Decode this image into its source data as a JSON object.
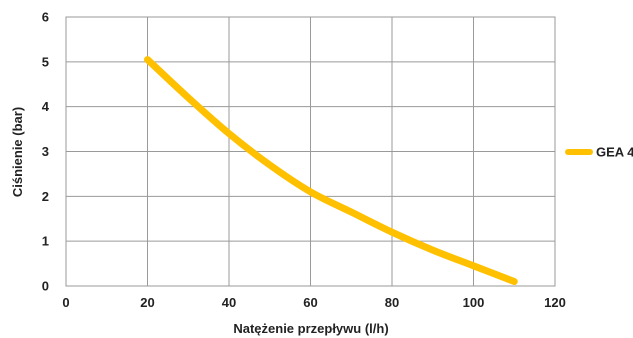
{
  "chart_data": {
    "type": "line",
    "title": "",
    "xlabel": "Natężenie przepływu (l/h)",
    "ylabel": "Ciśnienie (bar)",
    "xlim": [
      0,
      120
    ],
    "ylim": [
      0,
      6
    ],
    "xticks": [
      "0",
      "20",
      "40",
      "60",
      "80",
      "100",
      "120"
    ],
    "yticks": [
      "0",
      "1",
      "2",
      "3",
      "4",
      "5",
      "6"
    ],
    "grid": true,
    "legend_position": "right",
    "series": [
      {
        "name": "GEA 4",
        "color": "#FFC000",
        "x": [
          20,
          30,
          40,
          50,
          60,
          70,
          80,
          90,
          100,
          110
        ],
        "y": [
          5.05,
          4.2,
          3.4,
          2.7,
          2.1,
          1.65,
          1.2,
          0.8,
          0.45,
          0.1
        ]
      }
    ]
  }
}
